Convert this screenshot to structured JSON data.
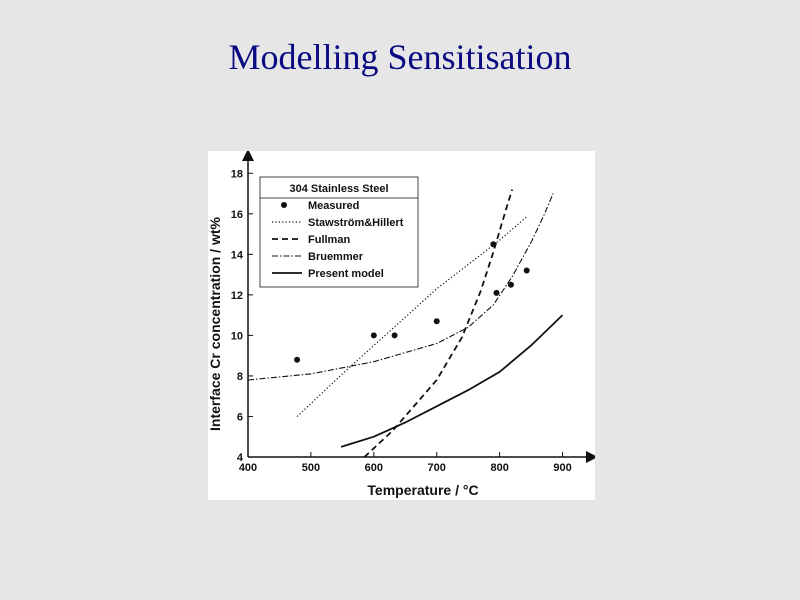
{
  "slide": {
    "title": "Modelling Sensitisation"
  },
  "chart_data": {
    "type": "scatter",
    "title": "",
    "xlabel": "Temperature / °C",
    "ylabel": "Interface Cr concentration / wt%",
    "xlim": [
      400,
      950
    ],
    "ylim": [
      4,
      19
    ],
    "xticks": [
      400,
      500,
      600,
      700,
      800,
      900
    ],
    "yticks": [
      4,
      6,
      8,
      10,
      12,
      14,
      16,
      18
    ],
    "grid": false,
    "legend": {
      "title": "304 Stainless Steel",
      "placement": "top-left",
      "entries": [
        "Measured",
        "Stawström&Hillert",
        "Fullman",
        "Bruemmer",
        "Present model"
      ]
    },
    "series": [
      {
        "name": "Measured",
        "style": "markers",
        "points": [
          [
            478,
            8.8
          ],
          [
            600,
            10.0
          ],
          [
            633,
            10.0
          ],
          [
            700,
            10.7
          ],
          [
            790,
            14.5
          ],
          [
            795,
            12.1
          ],
          [
            818,
            12.5
          ],
          [
            843,
            13.2
          ]
        ]
      },
      {
        "name": "Stawström&Hillert",
        "style": "dotted",
        "points": [
          [
            478,
            6.0
          ],
          [
            550,
            8.1
          ],
          [
            600,
            9.5
          ],
          [
            650,
            10.9
          ],
          [
            700,
            12.3
          ],
          [
            750,
            13.5
          ],
          [
            800,
            14.7
          ],
          [
            845,
            15.9
          ]
        ]
      },
      {
        "name": "Fullman",
        "style": "dashed",
        "points": [
          [
            585,
            4.0
          ],
          [
            630,
            5.3
          ],
          [
            700,
            7.8
          ],
          [
            740,
            9.9
          ],
          [
            770,
            12.2
          ],
          [
            790,
            14.1
          ],
          [
            810,
            16.2
          ],
          [
            820,
            17.2
          ]
        ]
      },
      {
        "name": "Bruemmer",
        "style": "dashdot",
        "points": [
          [
            400,
            7.8
          ],
          [
            500,
            8.1
          ],
          [
            600,
            8.7
          ],
          [
            700,
            9.6
          ],
          [
            750,
            10.4
          ],
          [
            790,
            11.5
          ],
          [
            820,
            12.9
          ],
          [
            850,
            14.6
          ],
          [
            870,
            15.9
          ],
          [
            885,
            17.0
          ]
        ]
      },
      {
        "name": "Present model",
        "style": "solid",
        "points": [
          [
            548,
            4.5
          ],
          [
            600,
            5.0
          ],
          [
            650,
            5.7
          ],
          [
            700,
            6.5
          ],
          [
            750,
            7.3
          ],
          [
            800,
            8.2
          ],
          [
            850,
            9.5
          ],
          [
            900,
            11.0
          ]
        ]
      }
    ]
  }
}
